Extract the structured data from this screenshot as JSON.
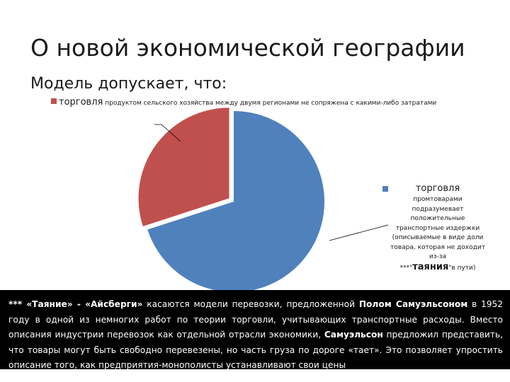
{
  "slide": {
    "title": "О новой экономической географии",
    "subtitle": "Модель допускает, что:"
  },
  "chart_data": {
    "type": "pie",
    "slices": [
      {
        "label_head": "торговля",
        "label_rest": " продуктом сельского хозяйства между двумя регионами не сопряжена с какими-либо затратами",
        "value": 30,
        "color": "#c0504d"
      },
      {
        "label_head": "торговля",
        "label_rest_1": "промтоварами подразумевает положительные транспортные издержки (описываемые в виде доли товара, которая не доходит из-за",
        "label_stars": "***\"",
        "label_big": "таяния",
        "label_tail": "\"в пути)",
        "value": 70,
        "color": "#4f81bd"
      }
    ]
  },
  "note": {
    "stars": "*** ",
    "term1": "«Таяние»",
    "dash": " - ",
    "term2": "«Айсберги»",
    "text1": " касаются модели перевозки, предложенной ",
    "author1": "Полом Самуэльсоном",
    "text2": " в 1952 году в одной из немногих работ по теории торговли, учитывающих транспортные расходы. Вместо описания индустрии перевозок как отдельной отрасли экономики, ",
    "author2": "Самуэльсон",
    "text3": " предложил представить, что товары могут быть свободно перевезены, но часть груза по дороге «тает». Это позволяет упростить описание того, как предприятия-монополисты устанавливают свои цены"
  }
}
